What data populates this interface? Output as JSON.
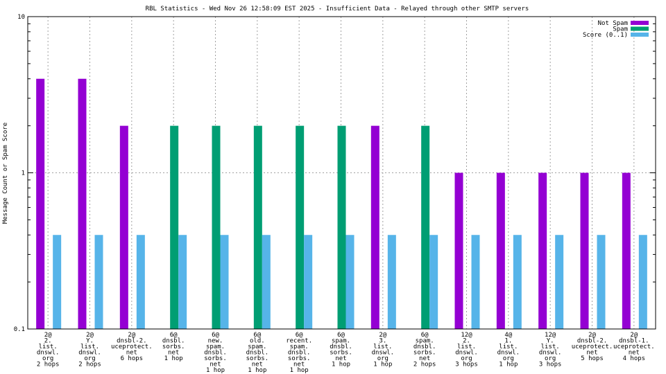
{
  "chart_data": {
    "type": "bar",
    "title": "RBL Statistics - Wed Nov 26 12:58:09 EST 2025 - Insufficient Data - Relayed through other SMTP servers",
    "xlabel": "",
    "ylabel": "Message Count or Spam Score",
    "yscale": "log",
    "ylim": [
      0.1,
      10
    ],
    "yticks": [
      {
        "value": 0.1,
        "label": "0.1"
      },
      {
        "value": 1,
        "label": "1"
      },
      {
        "value": 10,
        "label": "10"
      }
    ],
    "grid": true,
    "legend_position": "top-right",
    "categories": [
      [
        "2@",
        "2.",
        "list.",
        "dnswl.",
        "org",
        "2 hops"
      ],
      [
        "2@",
        "Y.",
        "list.",
        "dnswl.",
        "org",
        "2 hops"
      ],
      [
        "2@",
        "dnsbl-2.",
        "uceprotect.",
        "net",
        "6 hops"
      ],
      [
        "6@",
        "dnsbl.",
        "sorbs.",
        "net",
        "1 hop"
      ],
      [
        "6@",
        "new.",
        "spam.",
        "dnsbl.",
        "sorbs.",
        "net",
        "1 hop"
      ],
      [
        "6@",
        "old.",
        "spam.",
        "dnsbl.",
        "sorbs.",
        "net",
        "1 hop"
      ],
      [
        "6@",
        "recent.",
        "spam.",
        "dnsbl.",
        "sorbs.",
        "net",
        "1 hop"
      ],
      [
        "6@",
        "spam.",
        "dnsbl.",
        "sorbs.",
        "net",
        "1 hop"
      ],
      [
        "2@",
        "3.",
        "list.",
        "dnswl.",
        "org",
        "1 hop"
      ],
      [
        "6@",
        "spam.",
        "dnsbl.",
        "sorbs.",
        "net",
        "2 hops"
      ],
      [
        "12@",
        "2.",
        "list.",
        "dnswl.",
        "org",
        "3 hops"
      ],
      [
        "4@",
        "1.",
        "list.",
        "dnswl.",
        "org",
        "1 hop"
      ],
      [
        "12@",
        "Y.",
        "list.",
        "dnswl.",
        "org",
        "3 hops"
      ],
      [
        "2@",
        "dnsbl-2.",
        "uceprotect.",
        "net",
        "5 hops"
      ],
      [
        "2@",
        "dnsbl-1.",
        "uceprotect.",
        "net",
        "4 hops"
      ]
    ],
    "series": [
      {
        "name": "Not Spam",
        "color": "#9400d3",
        "values": [
          4,
          4,
          2,
          null,
          null,
          null,
          null,
          null,
          2,
          null,
          1,
          1,
          1,
          1,
          1
        ]
      },
      {
        "name": "Spam",
        "color": "#009e73",
        "values": [
          null,
          null,
          null,
          2,
          2,
          2,
          2,
          2,
          null,
          2,
          null,
          null,
          null,
          null,
          null
        ]
      },
      {
        "name": "Score (0..1)",
        "color": "#56b4e9",
        "values": [
          0.4,
          0.4,
          0.4,
          0.4,
          0.4,
          0.4,
          0.4,
          0.4,
          0.4,
          0.4,
          0.4,
          0.4,
          0.4,
          0.4,
          0.4
        ]
      }
    ]
  }
}
